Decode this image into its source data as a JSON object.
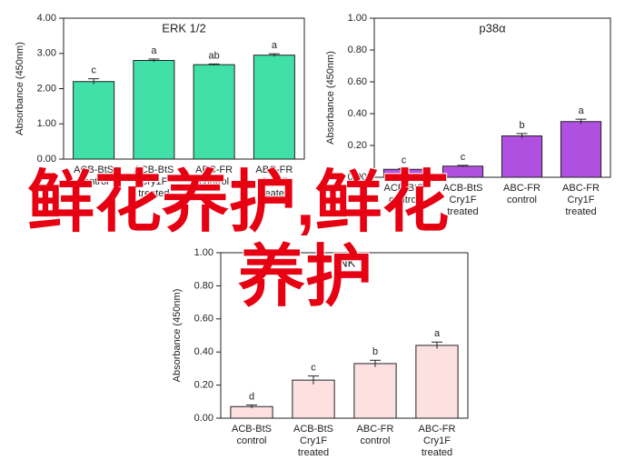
{
  "chart_data": [
    {
      "type": "bar",
      "title": "ERK 1/2",
      "y_label": "Absorbance (450nm)",
      "categories": [
        [
          "ACB-BtS",
          "control"
        ],
        [
          "ACB-BtS",
          "Cry1F",
          "treated"
        ],
        [
          "ABC-FR",
          "control"
        ],
        [
          "ABC-FR",
          "Cry1F",
          "treated"
        ]
      ],
      "values": [
        2.2,
        2.8,
        2.68,
        2.95
      ],
      "errors": [
        0.08,
        0.04,
        0.02,
        0.04
      ],
      "value_labels": [
        "c",
        "a",
        "ab",
        "a"
      ],
      "color": "#40e0a8",
      "ylim": [
        0,
        4
      ],
      "yticks": [
        {
          "value": 0,
          "label": "0.00"
        },
        {
          "value": 1,
          "label": "1.00"
        },
        {
          "value": 2,
          "label": "2.00"
        },
        {
          "value": 3,
          "label": "3.00"
        },
        {
          "value": 4,
          "label": "4.00"
        }
      ]
    },
    {
      "type": "bar",
      "title": "p38α",
      "y_label": "Absorbance (450nm)",
      "categories": [
        [
          "ACB-BtS",
          "control"
        ],
        [
          "ACB-BtS",
          "Cry1F",
          "treated"
        ],
        [
          "ABC-FR",
          "control"
        ],
        [
          "ABC-FR",
          "Cry1F",
          "treated"
        ]
      ],
      "values": [
        0.05,
        0.07,
        0.26,
        0.35
      ],
      "errors": [
        0.005,
        0.005,
        0.015,
        0.015
      ],
      "value_labels": [
        "c",
        "c",
        "b",
        "a"
      ],
      "color": "#b050e0",
      "ylim": [
        0,
        1
      ],
      "yticks": [
        {
          "value": 0,
          "label": "0.00"
        },
        {
          "value": 0.2,
          "label": "0.20"
        },
        {
          "value": 0.4,
          "label": "0.40"
        },
        {
          "value": 0.6,
          "label": "0.60"
        },
        {
          "value": 0.8,
          "label": "0.80"
        },
        {
          "value": 1,
          "label": "1.00"
        }
      ]
    },
    {
      "type": "bar",
      "title": "JNK",
      "y_label": "Absorbance (450nm)",
      "categories": [
        [
          "ACB-BtS",
          "control"
        ],
        [
          "ACB-BtS",
          "Cry1F",
          "treated"
        ],
        [
          "ABC-FR",
          "control"
        ],
        [
          "ABC-FR",
          "Cry1F",
          "treated"
        ]
      ],
      "values": [
        0.07,
        0.23,
        0.33,
        0.44
      ],
      "errors": [
        0.01,
        0.025,
        0.02,
        0.02
      ],
      "value_labels": [
        "d",
        "c",
        "b",
        "a"
      ],
      "color": "#fde0e0",
      "ylim": [
        0,
        1
      ],
      "yticks": [
        {
          "value": 0,
          "label": "0.00"
        },
        {
          "value": 0.2,
          "label": "0.20"
        },
        {
          "value": 0.4,
          "label": "0.40"
        },
        {
          "value": 0.6,
          "label": "0.60"
        },
        {
          "value": 0.8,
          "label": "0.80"
        },
        {
          "value": 1,
          "label": "1.00"
        }
      ]
    }
  ],
  "watermark": [
    "鲜花养护,鲜花",
    "养护"
  ]
}
